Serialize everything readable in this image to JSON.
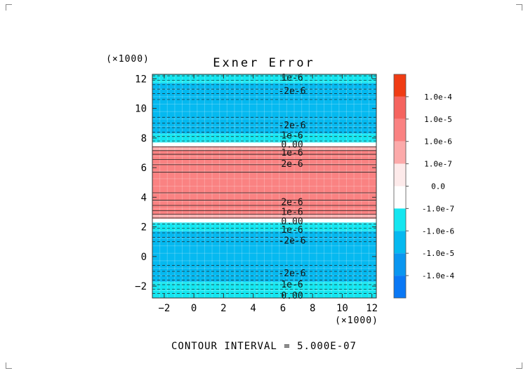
{
  "chart_data": {
    "type": "heatmap",
    "title": "Exner Error",
    "x_multiplier": "(×1000)",
    "y_multiplier": "(×1000)",
    "xlim": [
      -2.8,
      12.3
    ],
    "ylim": [
      -2.8,
      12.3
    ],
    "xticks": [
      -2,
      0,
      2,
      4,
      6,
      8,
      10,
      12
    ],
    "yticks": [
      -2,
      0,
      2,
      4,
      6,
      8,
      10,
      12
    ],
    "bands": [
      {
        "y0": -2.8,
        "y1": -2.3,
        "level": "-1.0e-7"
      },
      {
        "y0": -2.3,
        "y1": -1.7,
        "level": "-1.0e-7"
      },
      {
        "y0": -1.7,
        "y1": 1.7,
        "level": "-1.0e-6"
      },
      {
        "y0": 1.7,
        "y1": 2.3,
        "level": "-1.0e-7"
      },
      {
        "y0": 2.3,
        "y1": 2.55,
        "level": "0.0"
      },
      {
        "y0": 2.55,
        "y1": 2.85,
        "level": "1.0e-7"
      },
      {
        "y0": 2.85,
        "y1": 7.15,
        "level": "1.0e-6"
      },
      {
        "y0": 7.15,
        "y1": 7.45,
        "level": "1.0e-7"
      },
      {
        "y0": 7.45,
        "y1": 7.7,
        "level": "0.0"
      },
      {
        "y0": 7.7,
        "y1": 8.3,
        "level": "-1.0e-7"
      },
      {
        "y0": 8.3,
        "y1": 11.7,
        "level": "-1.0e-6"
      },
      {
        "y0": 11.7,
        "y1": 12.3,
        "level": "-1.0e-7"
      }
    ],
    "contour_labels": [
      {
        "text": "1e-6",
        "y": 12.1
      },
      {
        "text": "-2e-6",
        "y": 11.2
      },
      {
        "text": "-2e-6",
        "y": 8.9
      },
      {
        "text": "1e-6",
        "y": 8.2
      },
      {
        "text": "0.00",
        "y": 7.6
      },
      {
        "text": "1e-6",
        "y": 7.05
      },
      {
        "text": "2e-6",
        "y": 6.3
      },
      {
        "text": "2e-6",
        "y": 3.7
      },
      {
        "text": "1e-6",
        "y": 3.05
      },
      {
        "text": "0.00",
        "y": 2.4
      },
      {
        "text": "1e-6",
        "y": 1.85
      },
      {
        "text": "-2e-6",
        "y": 1.1
      },
      {
        "text": "-2e-6",
        "y": -1.1
      },
      {
        "text": "1e-6",
        "y": -1.85
      },
      {
        "text": "0.00",
        "y": -2.6
      }
    ],
    "colorbar": {
      "labels": [
        "1.0e-4",
        "1.0e-5",
        "1.0e-6",
        "1.0e-7",
        "0.0",
        "-1.0e-7",
        "-1.0e-6",
        "-1.0e-5",
        "-1.0e-4"
      ],
      "colors": [
        "#f03c14",
        "#f5645f",
        "#fa8282",
        "#fcaaaa",
        "#fdeaea",
        "#ffffff",
        "#14e6f0",
        "#05b9f0",
        "#0a96f0",
        "#0a78f5"
      ],
      "band_levels": [
        "1.0e-4",
        "1.0e-5",
        "1.0e-6",
        "1.0e-7",
        "0.0",
        "-0.0",
        "-1.0e-7",
        "-1.0e-6",
        "-1.0e-5",
        "-1.0e-4"
      ]
    },
    "footer": "CONTOUR INTERVAL = 5.000E-07"
  },
  "colors": {
    "-1.0e-7": "#14e6f0",
    "-1.0e-6": "#05b9f0",
    "0.0": "#ffffff",
    "1.0e-7": "#fcaaaa",
    "1.0e-6": "#fa8282"
  }
}
